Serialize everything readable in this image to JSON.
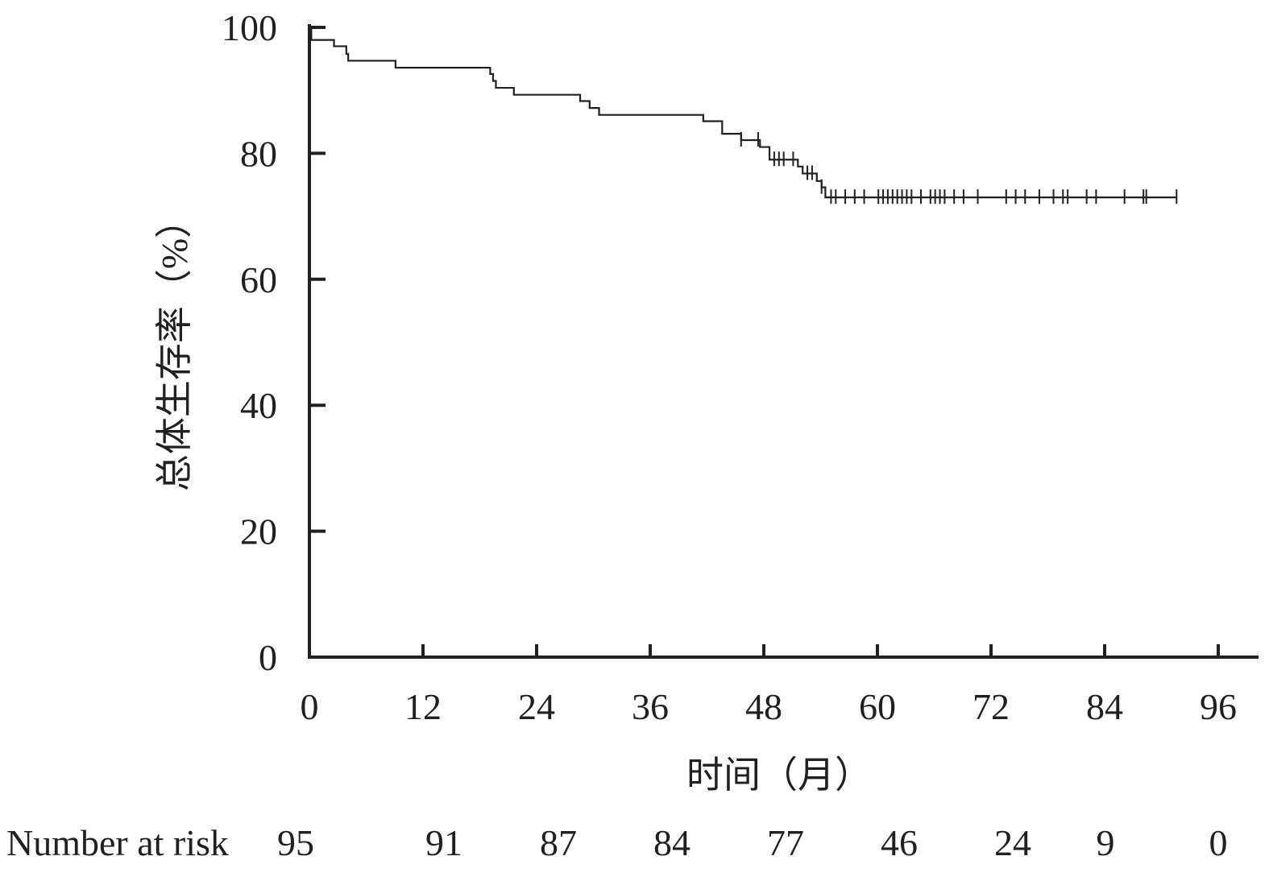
{
  "chart_data": {
    "type": "line",
    "subtype": "kaplan-meier",
    "title": "",
    "xlabel": "时间（月）",
    "ylabel": "总体生存率（%）",
    "xlim": [
      0,
      96
    ],
    "ylim": [
      0,
      100
    ],
    "x_ticks": [
      0,
      12,
      24,
      36,
      48,
      60,
      72,
      84,
      96
    ],
    "y_ticks": [
      0,
      20,
      40,
      60,
      80,
      100
    ],
    "grid": false,
    "legend": "none",
    "line_color": "#231f20",
    "series": [
      {
        "steps": [
          [
            0,
            100
          ],
          [
            0.2,
            98
          ],
          [
            2.6,
            97
          ],
          [
            3.9,
            95.8
          ],
          [
            4.1,
            94.7
          ],
          [
            9.1,
            93.6
          ],
          [
            19.1,
            92.6
          ],
          [
            19.4,
            91.5
          ],
          [
            19.7,
            90.4
          ],
          [
            21.6,
            89.3
          ],
          [
            28.6,
            88.3
          ],
          [
            29.6,
            87.2
          ],
          [
            30.6,
            86.1
          ],
          [
            41.6,
            85.1
          ],
          [
            43.6,
            83.1
          ],
          [
            45.6,
            82.1
          ],
          [
            47.6,
            81.0
          ],
          [
            48.6,
            79.0
          ],
          [
            51.6,
            77.9
          ],
          [
            52.1,
            76.8
          ],
          [
            53.6,
            75.6
          ],
          [
            54.1,
            74.6
          ],
          [
            54.5,
            73.0
          ],
          [
            91.6,
            73.0
          ]
        ],
        "censored": [
          45.6,
          47.4,
          49.1,
          49.6,
          50.1,
          51.1,
          52.6,
          53.1,
          54.1,
          55.1,
          55.6,
          56.6,
          57.6,
          58.6,
          60.1,
          60.6,
          61.1,
          61.6,
          62.1,
          62.6,
          63.1,
          63.6,
          64.6,
          65.6,
          66.1,
          66.6,
          67.1,
          68.1,
          69.1,
          70.6,
          73.6,
          74.6,
          75.6,
          77.1,
          78.6,
          79.6,
          80.1,
          82.1,
          83.1,
          86.1,
          88.1,
          88.4,
          91.6
        ]
      }
    ],
    "risk_table": {
      "label": "Number at risk",
      "times": [
        0,
        12,
        24,
        36,
        48,
        60,
        72,
        84,
        96
      ],
      "values": [
        "95",
        "91",
        "87",
        "84",
        "77",
        "46",
        "24",
        "9",
        "0"
      ]
    }
  }
}
